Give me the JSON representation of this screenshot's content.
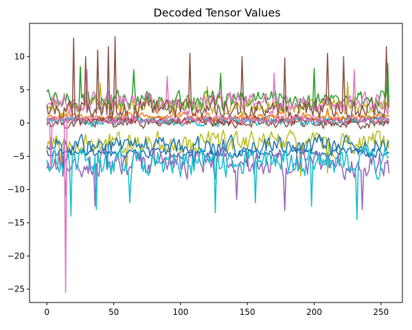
{
  "chart_data": {
    "type": "line",
    "title": "Decoded Tensor Values",
    "xlabel": "",
    "ylabel": "",
    "xlim": [
      -13,
      266
    ],
    "ylim": [
      -27,
      15
    ],
    "xticks": [
      0,
      50,
      100,
      150,
      200,
      250
    ],
    "yticks": [
      -25,
      -20,
      -15,
      -10,
      -5,
      0,
      5,
      10
    ],
    "ytick_labels": [
      "−25",
      "−20",
      "−15",
      "−10",
      "−5",
      "0",
      "5",
      "10"
    ],
    "grid": false,
    "legend": "none",
    "n_points": 257,
    "palette": [
      "#1f77b4",
      "#ff7f0e",
      "#2ca02c",
      "#d62728",
      "#9467bd",
      "#8c564b",
      "#e377c2",
      "#7f7f7f",
      "#bcbd22",
      "#17becf"
    ],
    "series": [
      {
        "color": "#7f7f7f",
        "center": 0.6,
        "amp": 0.7,
        "spikes": []
      },
      {
        "color": "#d62728",
        "center": 0.4,
        "amp": 0.8,
        "spikes": []
      },
      {
        "color": "#ff7f0e",
        "center": 1.0,
        "amp": 0.9,
        "spikes": [
          [
            55,
            2.6
          ],
          [
            95,
            2.4
          ],
          [
            210,
            2.2
          ]
        ]
      },
      {
        "color": "#17becf",
        "center": 0.2,
        "amp": 1.0,
        "spikes": []
      },
      {
        "color": "#8c564b",
        "center": 0.0,
        "amp": 1.2,
        "spikes": []
      },
      {
        "color": "#bcbd22",
        "center": 2.5,
        "amp": 1.8,
        "spikes": [
          [
            40,
            6.0
          ],
          [
            120,
            5.5
          ],
          [
            225,
            6.2
          ]
        ]
      },
      {
        "color": "#2ca02c",
        "center": 3.5,
        "amp": 2.2,
        "spikes": [
          [
            25,
            8.5
          ],
          [
            65,
            8.0
          ],
          [
            130,
            7.5
          ],
          [
            200,
            8.2
          ],
          [
            255,
            9.0
          ]
        ]
      },
      {
        "color": "#e377c2",
        "center": 3.0,
        "amp": 2.2,
        "spikes": [
          [
            30,
            8.0
          ],
          [
            90,
            7.0
          ],
          [
            170,
            7.5
          ],
          [
            230,
            8.0
          ]
        ]
      },
      {
        "color": "#8c564b",
        "center": 2.0,
        "amp": 2.5,
        "spikes": [
          [
            20,
            12.8
          ],
          [
            29,
            10.0
          ],
          [
            38,
            11.0
          ],
          [
            46,
            11.5
          ],
          [
            51,
            13.0
          ],
          [
            107,
            10.5
          ],
          [
            146,
            10.0
          ],
          [
            178,
            9.8
          ],
          [
            210,
            10.5
          ],
          [
            222,
            10.0
          ],
          [
            254,
            11.5
          ]
        ]
      },
      {
        "color": "#bcbd22",
        "center": -3.0,
        "amp": 2.5,
        "spikes": [
          [
            10,
            -7.0
          ],
          [
            60,
            -6.5
          ],
          [
            190,
            -8.0
          ],
          [
            210,
            -7.5
          ]
        ]
      },
      {
        "color": "#1f77b4",
        "center": -3.5,
        "amp": 2.2,
        "spikes": [
          [
            12,
            -8.0
          ],
          [
            45,
            -7.0
          ],
          [
            150,
            -6.5
          ]
        ]
      },
      {
        "color": "#1f77b4",
        "center": -4.5,
        "amp": 1.0,
        "spikes": [
          [
            110,
            -6.5
          ],
          [
            125,
            -6.0
          ]
        ]
      },
      {
        "color": "#9467bd",
        "center": -6.0,
        "amp": 3.2,
        "spikes": [
          [
            14,
            -11.0
          ],
          [
            36,
            -12.5
          ],
          [
            142,
            -11.5
          ],
          [
            178,
            -13.2
          ],
          [
            236,
            -13.0
          ]
        ]
      },
      {
        "color": "#17becf",
        "center": -6.0,
        "amp": 3.2,
        "spikes": [
          [
            18,
            -14.0
          ],
          [
            37,
            -13.0
          ],
          [
            62,
            -12.0
          ],
          [
            126,
            -13.5
          ],
          [
            156,
            -12.0
          ],
          [
            198,
            -12.5
          ],
          [
            232,
            -14.5
          ]
        ]
      },
      {
        "color": "#e377c2",
        "center": 0.5,
        "amp": 0.9,
        "spikes": [
          [
            14,
            -25.5
          ],
          [
            3,
            -6.5
          ]
        ]
      }
    ]
  }
}
